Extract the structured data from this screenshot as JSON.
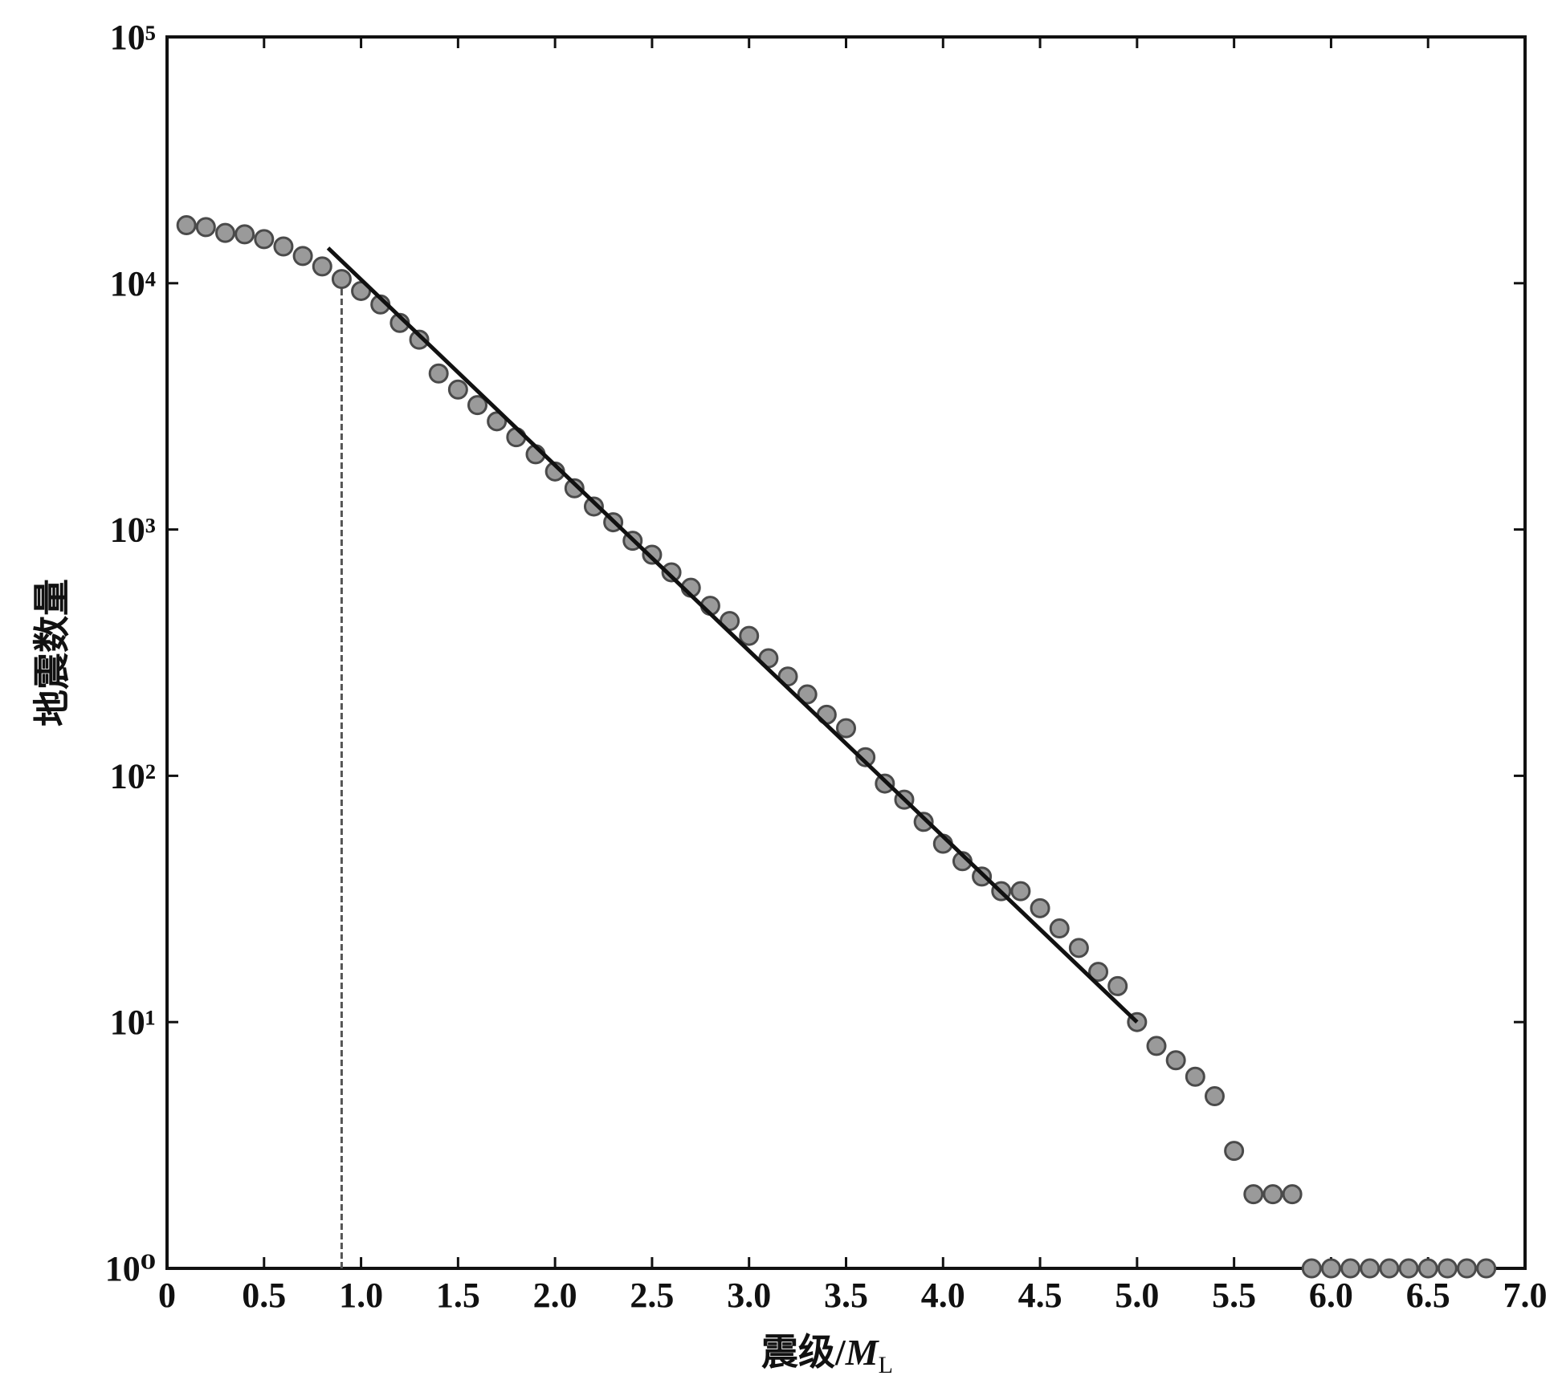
{
  "chart_data": {
    "type": "scatter",
    "ylabel": "地震数量",
    "xlabel": [
      "震级/",
      "M",
      "L"
    ],
    "log_y": true,
    "xlim": [
      0,
      7.0
    ],
    "ylim": [
      1,
      100000
    ],
    "xticks": [
      0,
      0.5,
      {
        "value": 1.0,
        "label": "1.0"
      },
      1.5,
      {
        "value": 2.0,
        "label": "2.0"
      },
      2.5,
      {
        "value": 3.0,
        "label": "3.0"
      },
      3.5,
      {
        "value": 4.0,
        "label": "4.0"
      },
      4.5,
      {
        "value": 5.0,
        "label": "5.0"
      },
      5.5,
      {
        "value": 6.0,
        "label": "6.0"
      },
      6.5,
      {
        "value": 7.0,
        "label": "7.0"
      }
    ],
    "yticks": [
      {
        "value": 1,
        "label": "10⁰"
      },
      {
        "value": 10,
        "label": "10¹"
      },
      {
        "value": 100,
        "label": "10²"
      },
      {
        "value": 1000,
        "label": "10³"
      },
      {
        "value": 10000,
        "label": "10⁴"
      },
      {
        "value": 100000,
        "label": "10⁵"
      }
    ],
    "points": {
      "color": "#9a9a9a",
      "x": [
        0.1,
        0.2,
        0.3,
        0.4,
        0.5,
        0.6,
        0.7,
        0.8,
        0.9,
        1.0,
        1.1,
        1.2,
        1.3,
        1.4,
        1.5,
        1.6,
        1.7,
        1.8,
        1.9,
        2.0,
        2.1,
        2.2,
        2.3,
        2.4,
        2.5,
        2.6,
        2.7,
        2.8,
        2.9,
        3.0,
        3.1,
        3.2,
        3.3,
        3.4,
        3.5,
        3.6,
        3.7,
        3.8,
        3.9,
        4.0,
        4.1,
        4.2,
        4.3,
        4.4,
        4.5,
        4.6,
        4.7,
        4.8,
        4.9,
        5.0,
        5.1,
        5.2,
        5.3,
        5.4,
        5.5,
        5.6,
        5.7,
        5.8,
        5.9,
        6.0,
        6.1,
        6.2,
        6.3,
        6.4,
        6.5,
        6.6,
        6.7,
        6.8
      ],
      "y": [
        17200,
        16900,
        16000,
        15800,
        15100,
        14100,
        12900,
        11700,
        10400,
        9300,
        8200,
        6900,
        5900,
        4300,
        3700,
        3200,
        2750,
        2370,
        2020,
        1720,
        1470,
        1240,
        1070,
        900,
        790,
        670,
        580,
        490,
        425,
        370,
        300,
        253,
        214,
        177,
        156,
        119,
        93,
        80,
        65,
        53,
        45,
        39,
        34,
        34,
        29,
        24,
        20,
        16,
        14,
        10,
        8,
        7,
        6,
        5,
        3,
        2,
        2,
        2,
        1,
        1,
        1,
        1,
        1,
        1,
        1,
        1,
        1,
        1
      ]
    },
    "fit_line": {
      "color": "#111111",
      "x": [
        0.83,
        5.0
      ],
      "y": [
        13900,
        10
      ]
    },
    "cutoff_line": {
      "color": "#555555",
      "x": [
        0.9,
        0.9
      ],
      "y": [
        1,
        9500
      ]
    }
  }
}
